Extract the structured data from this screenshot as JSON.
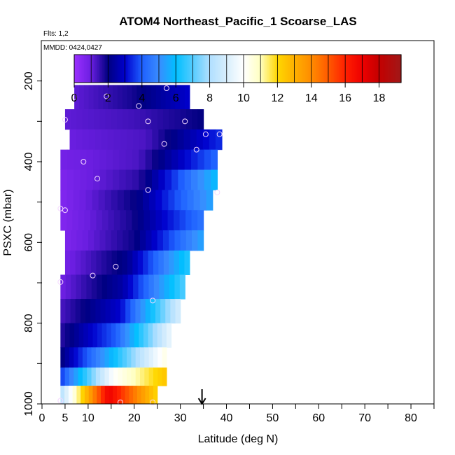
{
  "chart_data": {
    "type": "heatmap",
    "title": "ATOM4 Northeast_Pacific_1 Scoarse_LAS",
    "annotations": [
      "Flts: 1,2",
      "MMDD: 0424,0427"
    ],
    "xlabel": "Latitude (deg N)",
    "ylabel": "PSXC (mbar)",
    "xlim": [
      0,
      85
    ],
    "ylim": [
      1000,
      100
    ],
    "x_ticks": [
      0,
      5,
      10,
      20,
      30,
      40,
      50,
      60,
      70,
      80
    ],
    "y_ticks": [
      200,
      400,
      600,
      800,
      1000
    ],
    "colorbar": {
      "range": [
        0,
        19.3
      ],
      "ticks": [
        0,
        2,
        4,
        6,
        8,
        10,
        12,
        14,
        16,
        18
      ],
      "placement": "top"
    },
    "marker_latitude": 34.7,
    "rows": [
      {
        "p": [
          210,
          270
        ],
        "lat": [
          7,
          32
        ],
        "values": [
          1.1,
          1.8,
          3.0
        ]
      },
      {
        "p": [
          270,
          320
        ],
        "lat": [
          5,
          35
        ],
        "values": [
          1.1,
          1.4,
          2.0
        ]
      },
      {
        "p": [
          320,
          370
        ],
        "lat": [
          6,
          39
        ],
        "values": [
          1.0,
          1.3,
          3.5
        ]
      },
      {
        "p": [
          370,
          420
        ],
        "lat": [
          4,
          38
        ],
        "values": [
          0.8,
          1.3,
          4.2
        ]
      },
      {
        "p": [
          420,
          470
        ],
        "lat": [
          4,
          38
        ],
        "values": [
          0.6,
          1.6,
          6.0
        ]
      },
      {
        "p": [
          470,
          520
        ],
        "lat": [
          4,
          37
        ],
        "values": [
          0.5,
          2.0,
          5.5
        ]
      },
      {
        "p": [
          520,
          570
        ],
        "lat": [
          4,
          35
        ],
        "values": [
          0.5,
          1.8,
          4.5
        ]
      },
      {
        "p": [
          570,
          620
        ],
        "lat": [
          5,
          35
        ],
        "values": [
          0.6,
          1.9,
          5.5
        ]
      },
      {
        "p": [
          620,
          680
        ],
        "lat": [
          5,
          32
        ],
        "values": [
          0.8,
          2.2,
          6.5
        ]
      },
      {
        "p": [
          680,
          740
        ],
        "lat": [
          4,
          31
        ],
        "values": [
          0.9,
          2.5,
          7.0
        ]
      },
      {
        "p": [
          740,
          800
        ],
        "lat": [
          4,
          30
        ],
        "values": [
          1.3,
          3.0,
          9.0
        ]
      },
      {
        "p": [
          800,
          860
        ],
        "lat": [
          4,
          28
        ],
        "values": [
          1.6,
          4.0,
          9.5
        ]
      },
      {
        "p": [
          860,
          910
        ],
        "lat": [
          4,
          27
        ],
        "values": [
          1.9,
          6.0,
          10.5
        ]
      },
      {
        "p": [
          910,
          955
        ],
        "lat": [
          4,
          27
        ],
        "values": [
          3.5,
          10.0,
          12.5
        ]
      },
      {
        "p": [
          955,
          1000
        ],
        "lat": [
          4,
          25
        ],
        "values": [
          8.0,
          17.0,
          12.0
        ]
      }
    ],
    "cap": {
      "p": [
        165,
        200
      ],
      "lat": [
        29,
        30
      ],
      "value": 1.5
    },
    "points": [
      {
        "lat": 7,
        "p": 240
      },
      {
        "lat": 14,
        "p": 238
      },
      {
        "lat": 27,
        "p": 218
      },
      {
        "lat": 29,
        "p": 200
      },
      {
        "lat": 21,
        "p": 262
      },
      {
        "lat": 5,
        "p": 296
      },
      {
        "lat": 23,
        "p": 300
      },
      {
        "lat": 31,
        "p": 300
      },
      {
        "lat": 35.5,
        "p": 332
      },
      {
        "lat": 38.5,
        "p": 332
      },
      {
        "lat": 26.5,
        "p": 356
      },
      {
        "lat": 33.5,
        "p": 370
      },
      {
        "lat": 9,
        "p": 400
      },
      {
        "lat": 12,
        "p": 442
      },
      {
        "lat": 23,
        "p": 470
      },
      {
        "lat": 38,
        "p": 476
      },
      {
        "lat": 4,
        "p": 516
      },
      {
        "lat": 5,
        "p": 520
      },
      {
        "lat": 16,
        "p": 660
      },
      {
        "lat": 11,
        "p": 682
      },
      {
        "lat": 4,
        "p": 698
      },
      {
        "lat": 24,
        "p": 744
      },
      {
        "lat": 4,
        "p": 992
      },
      {
        "lat": 17,
        "p": 996
      },
      {
        "lat": 24,
        "p": 996
      }
    ]
  }
}
